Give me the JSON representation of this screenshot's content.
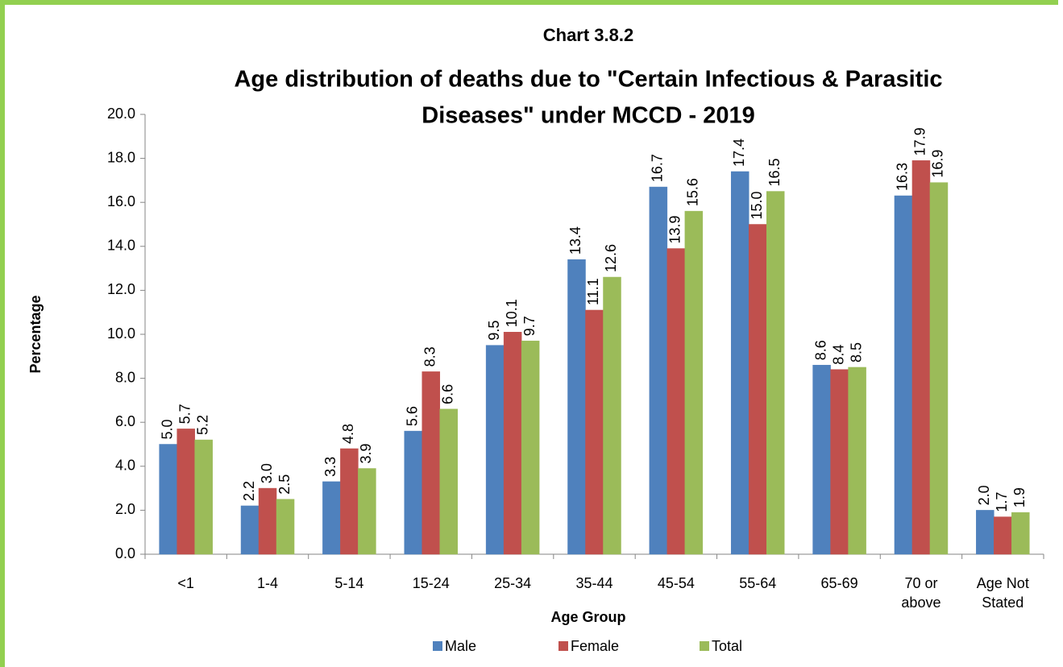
{
  "chart_data": {
    "type": "bar",
    "title_lines": [
      "Chart 3.8.2",
      "Age distribution of deaths due to \"Certain Infectious & Parasitic",
      "Diseases\" under MCCD - 2019"
    ],
    "xlabel": "Age Group",
    "ylabel": "Percentage",
    "categories": [
      "<1",
      "1-4",
      "5-14",
      "15-24",
      "25-34",
      "35-44",
      "45-54",
      "55-64",
      "65-69",
      "70 or above",
      "Age Not Stated"
    ],
    "series": [
      {
        "name": "Male",
        "color": "#4f81bd",
        "values": [
          5.0,
          2.2,
          3.3,
          5.6,
          9.5,
          13.4,
          16.7,
          17.4,
          8.6,
          16.3,
          2.0
        ],
        "value_labels": [
          "5.0",
          "2.2",
          "3.3",
          "5.6",
          "9.5",
          "13.4",
          "16.7",
          "17.4",
          "8.6",
          "16.3",
          "2.0"
        ]
      },
      {
        "name": "Female",
        "color": "#c0504d",
        "values": [
          5.7,
          3.0,
          4.8,
          8.3,
          10.1,
          11.1,
          13.9,
          15.0,
          8.4,
          17.9,
          1.7
        ],
        "value_labels": [
          "5.7",
          "3.0",
          "4.8",
          "8.3",
          "10.1",
          "11.1",
          "13.9",
          "15.0",
          "8.4",
          "17.9",
          "1.7"
        ]
      },
      {
        "name": "Total",
        "color": "#9bbb59",
        "values": [
          5.2,
          2.5,
          3.9,
          6.6,
          9.7,
          12.6,
          15.6,
          16.5,
          8.5,
          16.9,
          1.9
        ],
        "value_labels": [
          "5.2",
          "2.5",
          "3.9",
          "6.6",
          "9.7",
          "12.6",
          "15.6",
          "16.5",
          "8.5",
          "16.9",
          "1.9"
        ]
      }
    ],
    "ylim": [
      0,
      20
    ],
    "yticks": [
      {
        "value": 0,
        "label": "0.0"
      },
      {
        "value": 2,
        "label": "2.0"
      },
      {
        "value": 4,
        "label": "4.0"
      },
      {
        "value": 6,
        "label": "6.0"
      },
      {
        "value": 8,
        "label": "8.0"
      },
      {
        "value": 10,
        "label": "10.0"
      },
      {
        "value": 12,
        "label": "12.0"
      },
      {
        "value": 14,
        "label": "14.0"
      },
      {
        "value": 16,
        "label": "16.0"
      },
      {
        "value": 18,
        "label": "18.0"
      },
      {
        "value": 20,
        "label": "20.0"
      }
    ],
    "grid": false,
    "legend": "bottom"
  }
}
